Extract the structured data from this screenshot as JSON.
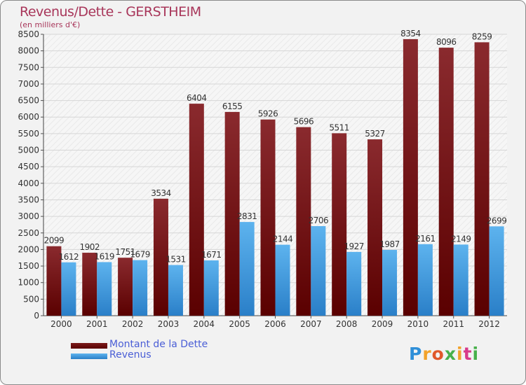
{
  "title": "Revenus/Dette - GERSTHEIM",
  "subtitle": "(en milliers d'€)",
  "logo": {
    "text": "Proxiti",
    "colors": [
      "#2f8fd8",
      "#f2a22a",
      "#e0582a",
      "#47b04a",
      "#d83a8a"
    ]
  },
  "legend": [
    {
      "label": "Montant de la Dette",
      "color": "#6b0a0a"
    },
    {
      "label": "Revenus",
      "color": "#3a96dc"
    }
  ],
  "chart_data": {
    "type": "bar",
    "title": "Revenus/Dette - GERSTHEIM",
    "subtitle": "(en milliers d'€)",
    "xlabel": "",
    "ylabel": "",
    "ylim": [
      0,
      8500
    ],
    "ytick_step": 500,
    "grid": true,
    "categories": [
      "2000",
      "2001",
      "2002",
      "2003",
      "2004",
      "2005",
      "2006",
      "2007",
      "2008",
      "2009",
      "2010",
      "2011",
      "2012"
    ],
    "series": [
      {
        "name": "Montant de la Dette",
        "color_top": "#8a2a2e",
        "color_bottom": "#5a0000",
        "values": [
          2099,
          1902,
          1751,
          3534,
          6404,
          6155,
          5926,
          5696,
          5511,
          5327,
          8354,
          8096,
          8259
        ]
      },
      {
        "name": "Revenus",
        "color_top": "#5db3ee",
        "color_bottom": "#2a7fc8",
        "values": [
          1612,
          1619,
          1679,
          1531,
          1671,
          2831,
          2144,
          2706,
          1927,
          1987,
          2161,
          2149,
          2699
        ]
      }
    ],
    "legend_position": "bottom-left"
  }
}
